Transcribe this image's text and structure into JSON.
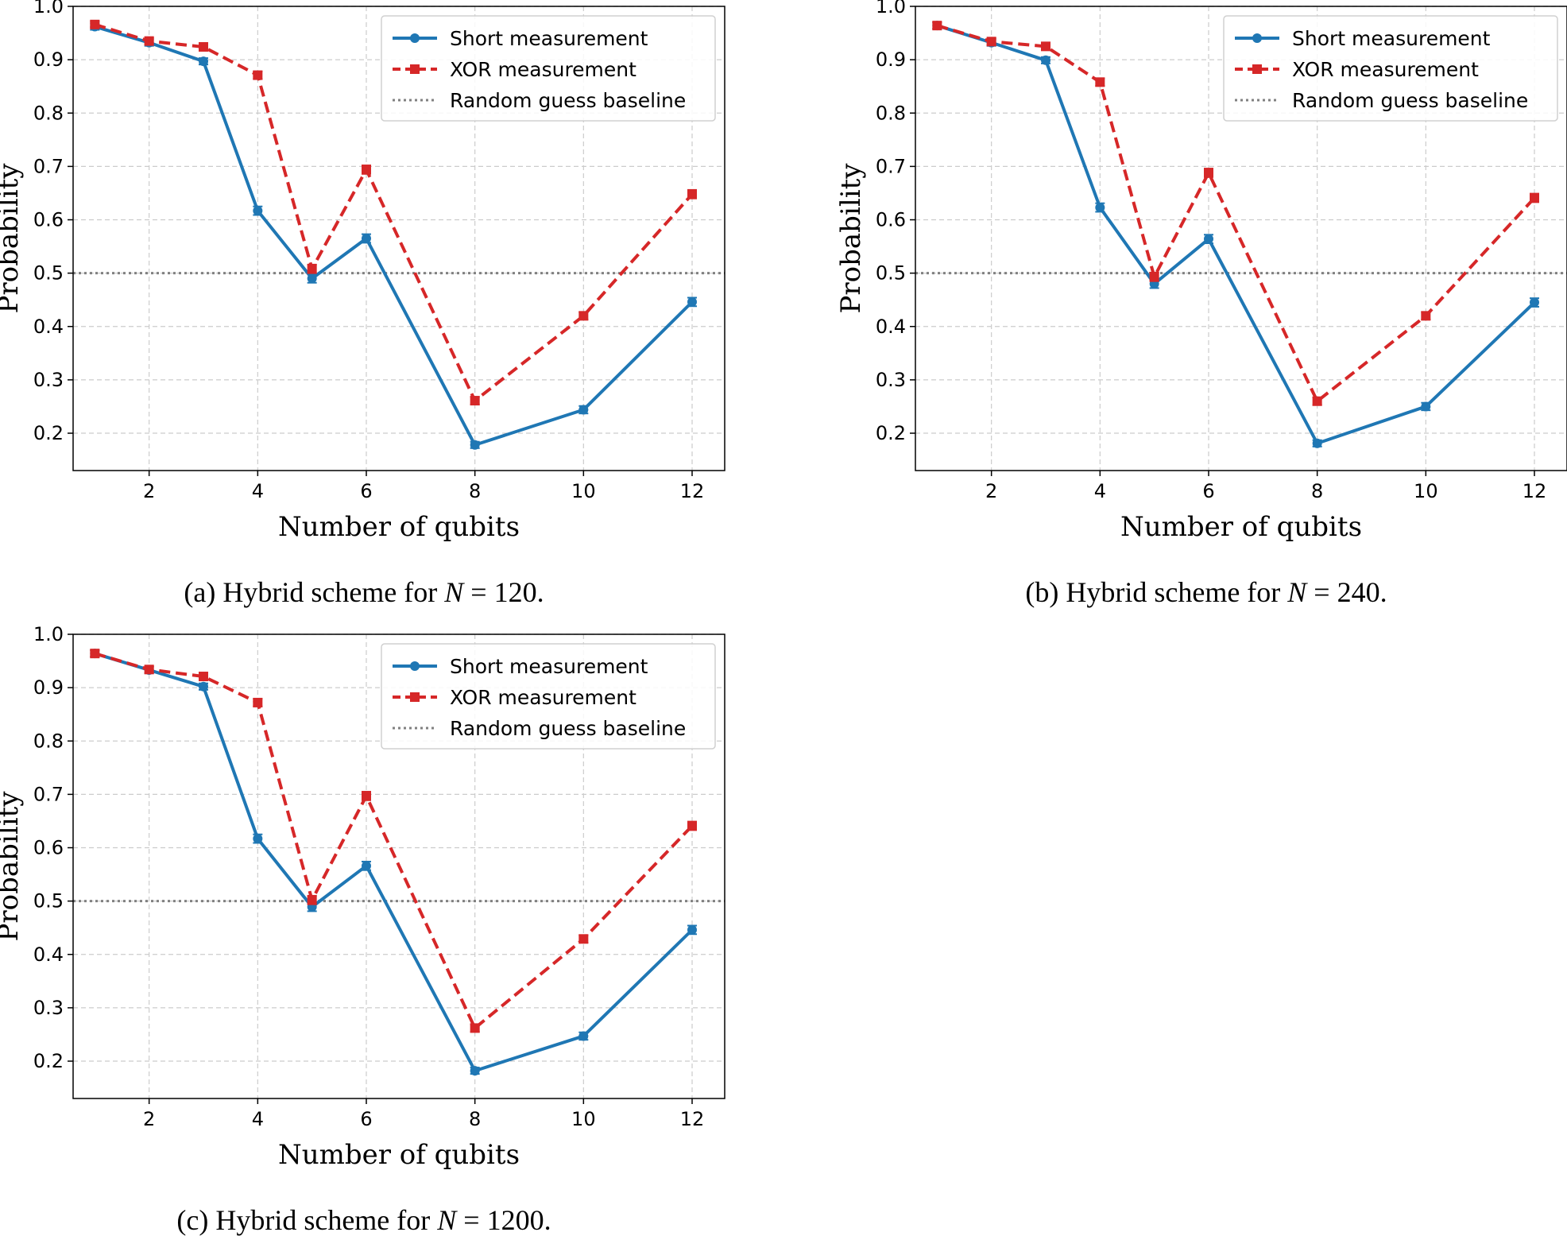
{
  "colors": {
    "short": "#1f77b4",
    "xor": "#d62728",
    "baseline": "#808080",
    "grid": "#cccccc"
  },
  "chart_data": [
    {
      "type": "line",
      "caption_prefix": "(a) Hybrid scheme for",
      "caption_var": "N",
      "caption_eq": "=",
      "caption_value": "120.",
      "xlabel": "Number of qubits",
      "ylabel": "Probability",
      "xlim": [
        0.6,
        12.6
      ],
      "ylim": [
        0.13,
        1.0
      ],
      "xticks": [
        2,
        4,
        6,
        8,
        10,
        12
      ],
      "yticks": [
        0.2,
        0.3,
        0.4,
        0.5,
        0.6,
        0.7,
        0.8,
        0.9,
        1.0
      ],
      "grid": true,
      "legend_position": "top-right",
      "baseline": {
        "name": "Random guess baseline",
        "value": 0.5
      },
      "x": [
        1,
        2,
        3,
        4,
        5,
        6,
        8,
        10,
        12
      ],
      "series": [
        {
          "name": "Short measurement",
          "values": [
            0.962,
            0.932,
            0.897,
            0.617,
            0.49,
            0.565,
            0.178,
            0.244,
            0.446
          ],
          "errors": [
            0.006,
            0.006,
            0.006,
            0.008,
            0.008,
            0.008,
            0.006,
            0.007,
            0.008
          ]
        },
        {
          "name": "XOR measurement",
          "values": [
            0.966,
            0.935,
            0.924,
            0.871,
            0.508,
            0.694,
            0.261,
            0.42,
            0.648
          ],
          "errors": [
            0.006,
            0.006,
            0.006,
            0.007,
            0.008,
            0.008,
            0.007,
            0.007,
            0.008
          ]
        }
      ]
    },
    {
      "type": "line",
      "caption_prefix": "(b) Hybrid scheme for",
      "caption_var": "N",
      "caption_eq": "=",
      "caption_value": "240.",
      "xlabel": "Number of qubits",
      "ylabel": "Probability",
      "xlim": [
        0.6,
        12.6
      ],
      "ylim": [
        0.13,
        1.0
      ],
      "xticks": [
        2,
        4,
        6,
        8,
        10,
        12
      ],
      "yticks": [
        0.2,
        0.3,
        0.4,
        0.5,
        0.6,
        0.7,
        0.8,
        0.9,
        1.0
      ],
      "grid": true,
      "legend_position": "top-right",
      "baseline": {
        "name": "Random guess baseline",
        "value": 0.5
      },
      "x": [
        1,
        2,
        3,
        4,
        5,
        6,
        8,
        10,
        12
      ],
      "series": [
        {
          "name": "Short measurement",
          "values": [
            0.964,
            0.932,
            0.899,
            0.623,
            0.48,
            0.564,
            0.181,
            0.25,
            0.445
          ],
          "errors": [
            0.006,
            0.006,
            0.006,
            0.008,
            0.008,
            0.008,
            0.006,
            0.007,
            0.008
          ]
        },
        {
          "name": "XOR measurement",
          "values": [
            0.964,
            0.934,
            0.925,
            0.858,
            0.493,
            0.688,
            0.26,
            0.42,
            0.641
          ],
          "errors": [
            0.006,
            0.006,
            0.006,
            0.007,
            0.008,
            0.008,
            0.007,
            0.007,
            0.008
          ]
        }
      ]
    },
    {
      "type": "line",
      "caption_prefix": "(c) Hybrid scheme for",
      "caption_var": "N",
      "caption_eq": "=",
      "caption_value": "1200.",
      "xlabel": "Number of qubits",
      "ylabel": "Probability",
      "xlim": [
        0.6,
        12.6
      ],
      "ylim": [
        0.13,
        1.0
      ],
      "xticks": [
        2,
        4,
        6,
        8,
        10,
        12
      ],
      "yticks": [
        0.2,
        0.3,
        0.4,
        0.5,
        0.6,
        0.7,
        0.8,
        0.9,
        1.0
      ],
      "grid": true,
      "legend_position": "top-right",
      "baseline": {
        "name": "Random guess baseline",
        "value": 0.5
      },
      "x": [
        1,
        2,
        3,
        4,
        5,
        6,
        8,
        10,
        12
      ],
      "series": [
        {
          "name": "Short measurement",
          "values": [
            0.964,
            0.933,
            0.902,
            0.617,
            0.489,
            0.566,
            0.182,
            0.247,
            0.446
          ],
          "errors": [
            0.006,
            0.006,
            0.006,
            0.008,
            0.008,
            0.008,
            0.006,
            0.007,
            0.008
          ]
        },
        {
          "name": "XOR measurement",
          "values": [
            0.964,
            0.934,
            0.921,
            0.872,
            0.502,
            0.697,
            0.262,
            0.429,
            0.641
          ],
          "errors": [
            0.006,
            0.006,
            0.006,
            0.007,
            0.008,
            0.008,
            0.007,
            0.007,
            0.008
          ]
        }
      ]
    }
  ]
}
